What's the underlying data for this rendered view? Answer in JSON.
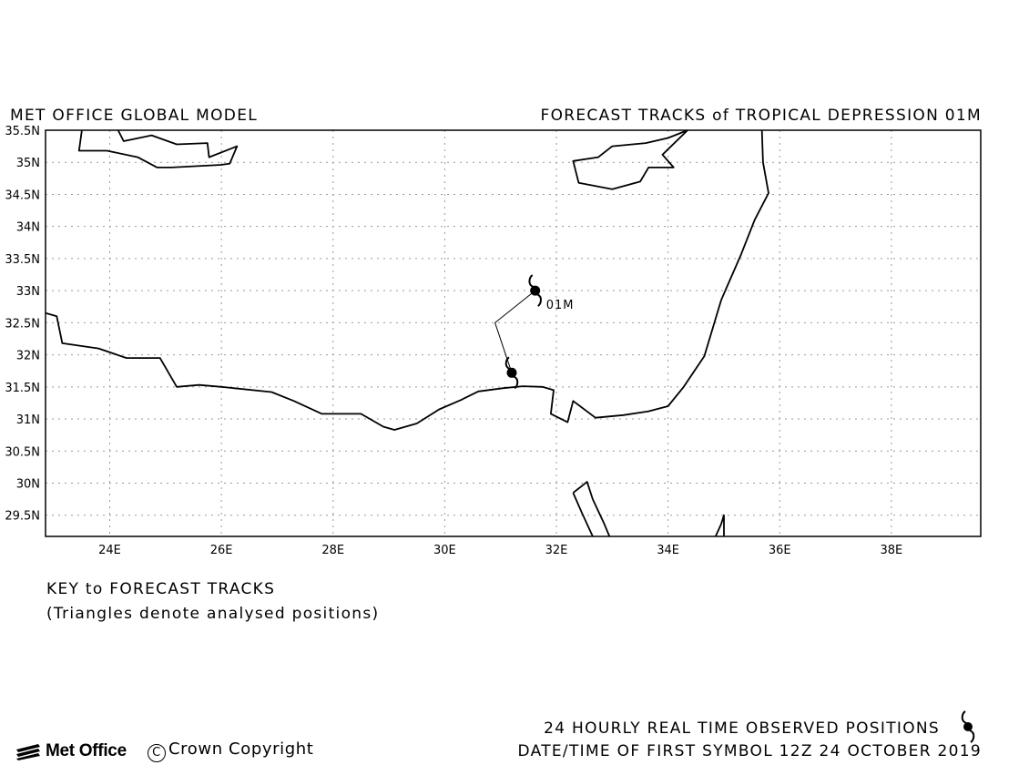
{
  "header": {
    "model": "MET OFFICE GLOBAL MODEL",
    "title": "FORECAST TRACKS of TROPICAL DEPRESSION 01M"
  },
  "map": {
    "lon_range": [
      22.85,
      39.6
    ],
    "lat_range": [
      29.17,
      35.5
    ],
    "lat_ticks": [
      {
        "value": 35.5,
        "label": "35.5N"
      },
      {
        "value": 35,
        "label": "35N"
      },
      {
        "value": 34.5,
        "label": "34.5N"
      },
      {
        "value": 34,
        "label": "34N"
      },
      {
        "value": 33.5,
        "label": "33.5N"
      },
      {
        "value": 33,
        "label": "33N"
      },
      {
        "value": 32.5,
        "label": "32.5N"
      },
      {
        "value": 32,
        "label": "32N"
      },
      {
        "value": 31.5,
        "label": "31.5N"
      },
      {
        "value": 31,
        "label": "31N"
      },
      {
        "value": 30.5,
        "label": "30.5N"
      },
      {
        "value": 30,
        "label": "30N"
      },
      {
        "value": 29.5,
        "label": "29.5N"
      }
    ],
    "lon_ticks": [
      {
        "value": 24,
        "label": "24E"
      },
      {
        "value": 26,
        "label": "26E"
      },
      {
        "value": 28,
        "label": "28E"
      },
      {
        "value": 30,
        "label": "30E"
      },
      {
        "value": 32,
        "label": "32E"
      },
      {
        "value": 34,
        "label": "34E"
      },
      {
        "value": 36,
        "label": "36E"
      },
      {
        "value": 38,
        "label": "38E"
      }
    ],
    "grid": "dotted",
    "coastlines": [
      [
        [
          23.5,
          35.5
        ],
        [
          23.45,
          35.18
        ],
        [
          23.95,
          35.18
        ],
        [
          24.5,
          35.08
        ],
        [
          24.85,
          34.92
        ],
        [
          25.1,
          34.92
        ],
        [
          26.0,
          34.96
        ],
        [
          26.15,
          34.98
        ],
        [
          26.28,
          35.25
        ],
        [
          25.78,
          35.08
        ],
        [
          25.75,
          35.3
        ],
        [
          25.2,
          35.28
        ],
        [
          24.75,
          35.42
        ],
        [
          24.25,
          35.33
        ],
        [
          24.15,
          35.5
        ]
      ],
      [
        [
          22.85,
          32.65
        ],
        [
          23.05,
          32.6
        ],
        [
          23.15,
          32.18
        ],
        [
          23.8,
          32.1
        ],
        [
          24.3,
          31.95
        ],
        [
          24.9,
          31.95
        ],
        [
          25.2,
          31.5
        ],
        [
          25.6,
          31.53
        ],
        [
          26.0,
          31.5
        ],
        [
          26.9,
          31.42
        ],
        [
          27.3,
          31.28
        ],
        [
          27.8,
          31.08
        ],
        [
          28.5,
          31.08
        ],
        [
          28.9,
          30.88
        ],
        [
          29.1,
          30.83
        ],
        [
          29.5,
          30.93
        ],
        [
          29.9,
          31.15
        ],
        [
          30.3,
          31.3
        ],
        [
          30.6,
          31.43
        ],
        [
          31.05,
          31.48
        ],
        [
          31.4,
          31.51
        ],
        [
          31.75,
          31.5
        ],
        [
          31.95,
          31.45
        ],
        [
          31.9,
          31.08
        ],
        [
          32.2,
          30.95
        ],
        [
          32.3,
          31.28
        ],
        [
          32.7,
          31.02
        ],
        [
          33.2,
          31.06
        ],
        [
          33.65,
          31.12
        ],
        [
          34.0,
          31.2
        ],
        [
          34.28,
          31.5
        ],
        [
          34.65,
          31.98
        ],
        [
          34.95,
          32.85
        ],
        [
          35.05,
          33.05
        ],
        [
          35.3,
          33.55
        ],
        [
          35.55,
          34.1
        ],
        [
          35.8,
          34.52
        ],
        [
          35.7,
          35.0
        ],
        [
          35.68,
          35.5
        ]
      ],
      [
        [
          34.35,
          35.5
        ],
        [
          34.0,
          35.38
        ],
        [
          33.6,
          35.3
        ],
        [
          33.0,
          35.25
        ],
        [
          32.75,
          35.08
        ],
        [
          32.3,
          35.02
        ],
        [
          32.4,
          34.68
        ],
        [
          33.0,
          34.58
        ],
        [
          33.5,
          34.7
        ],
        [
          33.65,
          34.92
        ],
        [
          34.1,
          34.92
        ],
        [
          33.9,
          35.12
        ],
        [
          34.35,
          35.5
        ]
      ],
      [
        [
          32.3,
          29.85
        ],
        [
          32.55,
          30.02
        ],
        [
          32.65,
          29.75
        ],
        [
          32.85,
          29.38
        ],
        [
          32.95,
          29.17
        ]
      ],
      [
        [
          32.3,
          29.85
        ],
        [
          32.45,
          29.55
        ],
        [
          32.65,
          29.17
        ]
      ],
      [
        [
          34.85,
          29.17
        ],
        [
          34.95,
          29.36
        ],
        [
          35.0,
          29.5
        ],
        [
          35.0,
          29.17
        ]
      ]
    ],
    "tracks": [
      {
        "points": [
          [
            31.2,
            31.72
          ],
          [
            30.9,
            32.5
          ],
          [
            31.62,
            33.0
          ]
        ]
      }
    ],
    "storm_symbols": [
      {
        "lon": 31.2,
        "lat": 31.72
      },
      {
        "lon": 31.62,
        "lat": 33.0,
        "label": "01M"
      }
    ]
  },
  "key": {
    "heading": "KEY to FORECAST TRACKS",
    "note": "(Triangles denote analysed positions)"
  },
  "legend": {
    "observed": "24 HOURLY REAL TIME OBSERVED POSITIONS",
    "first_symbol": "DATE/TIME OF FIRST SYMBOL 12Z 24 OCTOBER 2019"
  },
  "footer": {
    "logo_text": "Met Office",
    "copyright_symbol": "C",
    "copyright_text": "Crown Copyright"
  }
}
